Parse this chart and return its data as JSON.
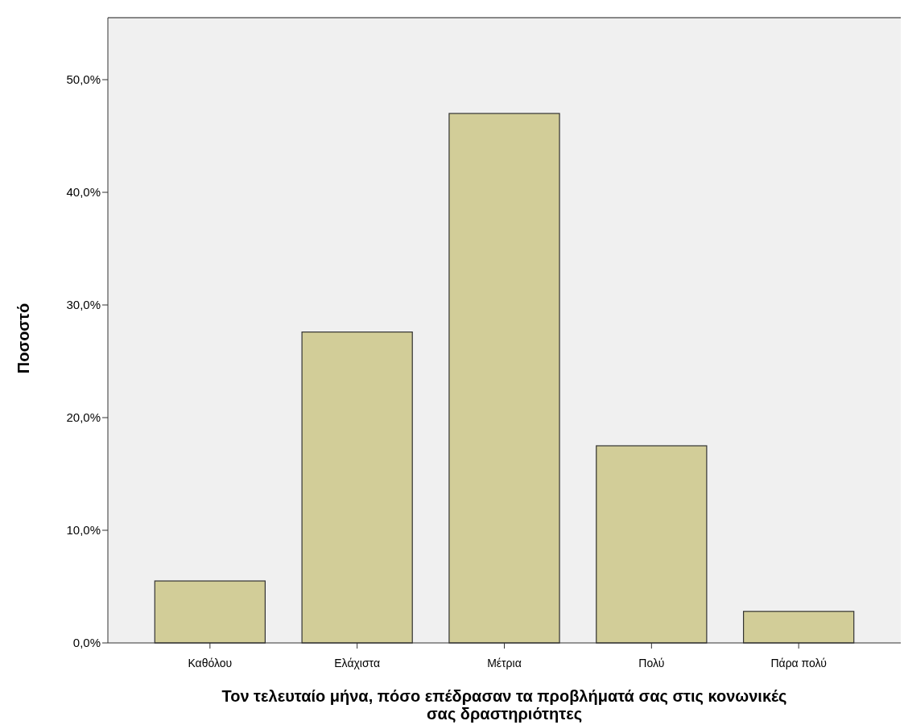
{
  "chart_data": {
    "type": "bar",
    "xlabel": "Τον τελευταίο μήνα, πόσο επέδρασαν τα προβλήματά σας στις κονωνικές σας δραστηριότητες",
    "ylabel": "Ποσοστό",
    "categories": [
      "Καθόλου",
      "Ελάχιστα",
      "Μέτρια",
      "Πολύ",
      "Πάρα πολύ"
    ],
    "values": [
      5.5,
      27.6,
      47.0,
      17.5,
      2.8
    ],
    "color": "#d2cd98",
    "ylim": [
      0,
      55.5
    ],
    "yticks": [
      {
        "value": 0,
        "label": "0,0%"
      },
      {
        "value": 10,
        "label": "10,0%"
      },
      {
        "value": 20,
        "label": "20,0%"
      },
      {
        "value": 30,
        "label": "30,0%"
      },
      {
        "value": 40,
        "label": "40,0%"
      },
      {
        "value": 50,
        "label": "50,0%"
      }
    ],
    "grid": false
  }
}
